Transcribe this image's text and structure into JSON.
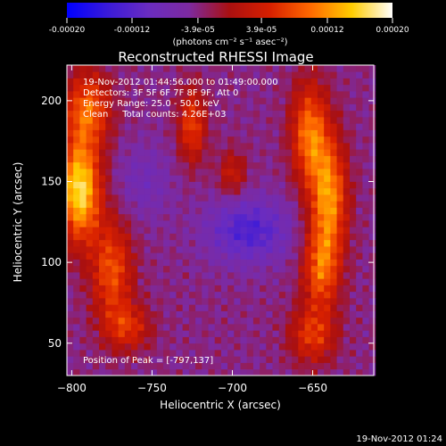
{
  "chart_data": {
    "type": "heatmap",
    "title": "Reconstructed RHESSI Image",
    "xlabel": "Heliocentric X (arcsec)",
    "ylabel": "Heliocentric Y (arcsec)",
    "xlim": [
      -803,
      -612
    ],
    "ylim": [
      30,
      222
    ],
    "x_ticks": [
      -800,
      -750,
      -700,
      -650
    ],
    "y_ticks": [
      50,
      100,
      150,
      200
    ],
    "colorbar": {
      "range": [
        -0.0002,
        0.0002
      ],
      "ticks": [
        -0.0002,
        -0.00012,
        -3.9e-05,
        3.9e-05,
        0.00012,
        0.0002
      ],
      "tick_labels": [
        "-0.00020",
        "-0.00012",
        "-3.9e-05",
        "3.9e-05",
        "0.00012",
        "0.00020"
      ],
      "unit_label": "(photons cm⁻² s⁻¹ asec⁻²)",
      "colors": [
        "#0000ff",
        "#3a1ad9",
        "#6a2cc0",
        "#7d2aa0",
        "#aa1010",
        "#d82000",
        "#ff6a00",
        "#ffcc00",
        "#ffffff"
      ]
    },
    "annotations": [
      "19-Nov-2012 01:44:56.000 to 01:49:00.000",
      "Detectors: 3F 5F 6F 7F 8F 9F, Att 0",
      "Energy Range: 25.0 - 50.0 keV",
      "Clean     Total counts: 4.26E+03"
    ],
    "peak_label": "Position of Peak = [-797,137]",
    "peak": [
      -797,
      137
    ],
    "sources": [
      {
        "x": -795,
        "y": 145,
        "intensity": 0.00021,
        "sx": 9,
        "sy": 22
      },
      {
        "x": -790,
        "y": 195,
        "intensity": 0.00013,
        "sx": 10,
        "sy": 16
      },
      {
        "x": -775,
        "y": 95,
        "intensity": 0.00012,
        "sx": 9,
        "sy": 22
      },
      {
        "x": -765,
        "y": 60,
        "intensity": 9e-05,
        "sx": 10,
        "sy": 10
      },
      {
        "x": -725,
        "y": 185,
        "intensity": 0.00011,
        "sx": 6,
        "sy": 16
      },
      {
        "x": -700,
        "y": 155,
        "intensity": 7e-05,
        "sx": 6,
        "sy": 10
      },
      {
        "x": -652,
        "y": 180,
        "intensity": 0.00014,
        "sx": 8,
        "sy": 22
      },
      {
        "x": -640,
        "y": 140,
        "intensity": 0.00016,
        "sx": 8,
        "sy": 26
      },
      {
        "x": -645,
        "y": 95,
        "intensity": 0.00012,
        "sx": 8,
        "sy": 18
      },
      {
        "x": -650,
        "y": 55,
        "intensity": 0.0001,
        "sx": 10,
        "sy": 12
      },
      {
        "x": -690,
        "y": 120,
        "intensity": -9e-05,
        "sx": 18,
        "sy": 14
      },
      {
        "x": -755,
        "y": 150,
        "intensity": -4e-05,
        "sx": 12,
        "sy": 16
      }
    ]
  },
  "footer": {
    "timestamp": "19-Nov-2012 01:24"
  }
}
